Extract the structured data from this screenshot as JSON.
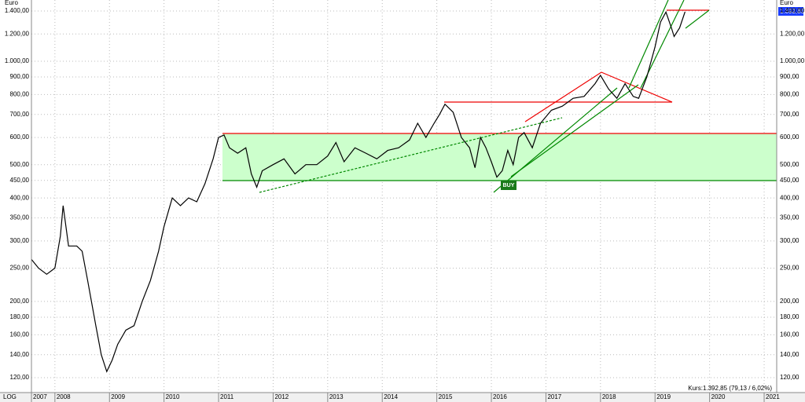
{
  "chart_data": {
    "type": "line",
    "axis_label": "Euro",
    "scale_label": "LOG",
    "last_price_label": "1.392,85",
    "status_text": "Kurs:1.392,85 (79,13 / 6,02%)",
    "signal_label": "BUY",
    "log_scale": true,
    "grid": true,
    "color": "#000000",
    "x": [
      2007.57,
      2007.7,
      2007.85,
      2008.0,
      2008.1,
      2008.15,
      2008.25,
      2008.4,
      2008.5,
      2008.6,
      2008.75,
      2008.85,
      2008.95,
      2009.05,
      2009.15,
      2009.3,
      2009.45,
      2009.6,
      2009.75,
      2009.9,
      2010.0,
      2010.15,
      2010.3,
      2010.45,
      2010.6,
      2010.75,
      2010.9,
      2011.0,
      2011.1,
      2011.2,
      2011.35,
      2011.5,
      2011.6,
      2011.7,
      2011.8,
      2012.0,
      2012.2,
      2012.4,
      2012.6,
      2012.8,
      2013.0,
      2013.15,
      2013.3,
      2013.5,
      2013.7,
      2013.9,
      2014.1,
      2014.3,
      2014.5,
      2014.65,
      2014.8,
      2014.95,
      2015.05,
      2015.15,
      2015.3,
      2015.45,
      2015.6,
      2015.7,
      2015.8,
      2015.9,
      2016.0,
      2016.1,
      2016.2,
      2016.3,
      2016.4,
      2016.5,
      2016.6,
      2016.75,
      2016.9,
      2017.1,
      2017.3,
      2017.5,
      2017.7,
      2017.9,
      2018.0,
      2018.15,
      2018.3,
      2018.45,
      2018.6,
      2018.7,
      2018.85,
      2019.0,
      2019.1,
      2019.2,
      2019.3,
      2019.35,
      2019.45,
      2019.55
    ],
    "values": [
      265,
      250,
      240,
      250,
      310,
      380,
      290,
      290,
      280,
      230,
      170,
      140,
      125,
      135,
      150,
      165,
      170,
      200,
      230,
      280,
      330,
      400,
      380,
      400,
      390,
      440,
      520,
      600,
      610,
      560,
      540,
      560,
      470,
      430,
      480,
      500,
      520,
      470,
      500,
      500,
      530,
      580,
      510,
      560,
      540,
      520,
      550,
      560,
      590,
      660,
      600,
      660,
      700,
      750,
      710,
      600,
      560,
      490,
      600,
      560,
      510,
      460,
      480,
      550,
      500,
      600,
      620,
      560,
      660,
      720,
      740,
      780,
      790,
      860,
      910,
      830,
      780,
      860,
      790,
      780,
      900,
      1100,
      1300,
      1390,
      1250,
      1180,
      1250,
      1392.85
    ],
    "xlim": [
      2007.57,
      2021.23
    ],
    "xticks": [
      2007,
      2008,
      2009,
      2010,
      2011,
      2012,
      2013,
      2014,
      2015,
      2016,
      2017,
      2018,
      2019,
      2020,
      2021
    ],
    "ylim": [
      108.6,
      1507
    ],
    "yticks": [
      {
        "value": 120,
        "label": "120,00"
      },
      {
        "value": 140,
        "label": "140,00"
      },
      {
        "value": 160,
        "label": "160,00"
      },
      {
        "value": 180,
        "label": "180,00"
      },
      {
        "value": 200,
        "label": "200,00"
      },
      {
        "value": 250,
        "label": "250,00"
      },
      {
        "value": 300,
        "label": "300,00"
      },
      {
        "value": 350,
        "label": "350,00"
      },
      {
        "value": 400,
        "label": "400,00"
      },
      {
        "value": 450,
        "label": "450,00"
      },
      {
        "value": 500,
        "label": "500,00"
      },
      {
        "value": 600,
        "label": "600,00"
      },
      {
        "value": 700,
        "label": "700,00"
      },
      {
        "value": 800,
        "label": "800,00"
      },
      {
        "value": 900,
        "label": "900,00"
      },
      {
        "value": 1000,
        "label": "1.000,00"
      },
      {
        "value": 1200,
        "label": "1.200,00"
      },
      {
        "value": 1400,
        "label": "1.400,00"
      }
    ]
  }
}
